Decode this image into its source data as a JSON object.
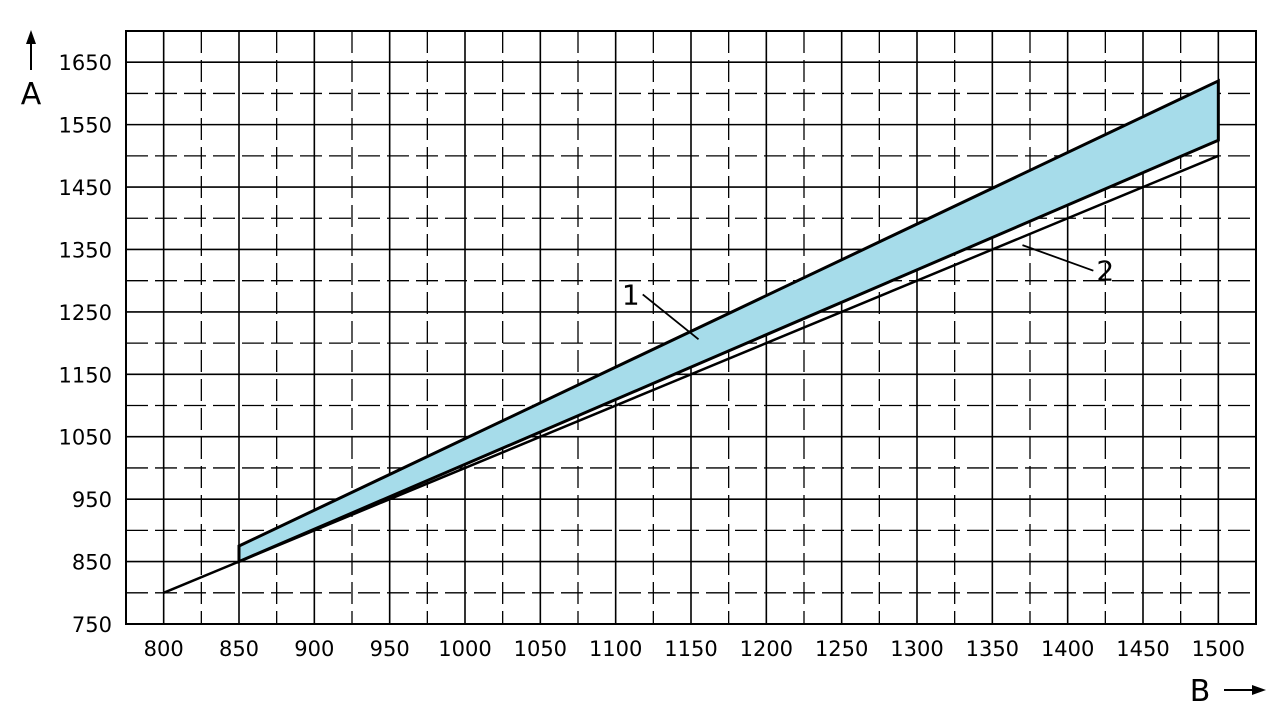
{
  "chart_data": {
    "type": "area",
    "xlabel": "B",
    "ylabel": "A",
    "xlim": [
      775,
      1525
    ],
    "ylim": [
      750,
      1700
    ],
    "x_ticks": [
      800,
      850,
      900,
      950,
      1000,
      1050,
      1100,
      1150,
      1200,
      1250,
      1300,
      1350,
      1400,
      1450,
      1500
    ],
    "y_ticks": [
      750,
      850,
      950,
      1050,
      1150,
      1250,
      1350,
      1450,
      1550,
      1650
    ],
    "grid": true,
    "colors": {
      "band": "#a6dcea",
      "line": "#000000",
      "grid": "#000000"
    },
    "band": {
      "x": [
        850,
        1500
      ],
      "upper": [
        875,
        1620
      ],
      "lower": [
        850,
        1525
      ]
    },
    "reference_line": {
      "x": [
        800,
        1500
      ],
      "y": [
        800,
        1500
      ]
    },
    "annotations": [
      {
        "label": "1",
        "target_x": 1155,
        "target_y": 1206,
        "text_x": 1110,
        "text_y": 1262
      },
      {
        "label": "2",
        "target_x": 1370,
        "target_y": 1357,
        "text_x": 1425,
        "text_y": 1300
      }
    ]
  }
}
